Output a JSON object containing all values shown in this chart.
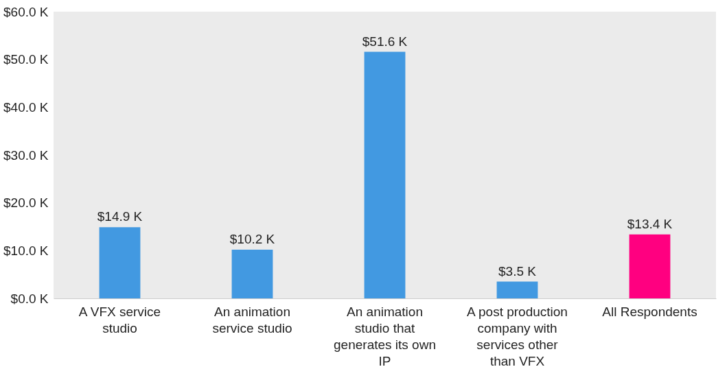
{
  "chart_data": {
    "type": "bar",
    "categories": [
      "A VFX service studio",
      "An animation service studio",
      "An animation studio that generates its own IP",
      "A post production company with services other than VFX",
      "All Respondents"
    ],
    "values": [
      14.9,
      10.2,
      51.6,
      3.5,
      13.4
    ],
    "colors": [
      "#4299e1",
      "#4299e1",
      "#4299e1",
      "#4299e1",
      "#ff0080"
    ],
    "value_labels": [
      "$14.9 K",
      "$10.2 K",
      "$51.6 K",
      "$3.5 K",
      "$13.4 K"
    ],
    "ylim": [
      0,
      60
    ],
    "yticks": [
      {
        "value": 0,
        "label": "$0.0 K"
      },
      {
        "value": 10,
        "label": "$10.0 K"
      },
      {
        "value": 20,
        "label": "$20.0 K"
      },
      {
        "value": 30,
        "label": "$30.0 K"
      },
      {
        "value": 40,
        "label": "$40.0 K"
      },
      {
        "value": 50,
        "label": "$50.0 K"
      },
      {
        "value": 60,
        "label": "$60.0 K"
      }
    ],
    "grid": false
  }
}
